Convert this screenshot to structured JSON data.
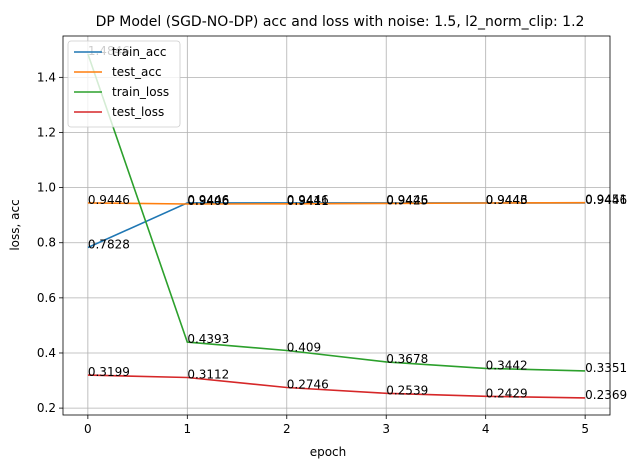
{
  "chart_data": {
    "type": "line",
    "title": "DP Model (SGD-NO-DP) acc and loss with noise: 1.5, l2_norm_clip: 1.2",
    "xlabel": "epoch",
    "ylabel": "loss, acc",
    "x": [
      0,
      1,
      2,
      3,
      4,
      5
    ],
    "xlim": [
      -0.25,
      5.25
    ],
    "ylim": [
      0.175,
      1.55
    ],
    "xticks": [
      "0",
      "1",
      "2",
      "3",
      "4",
      "5"
    ],
    "yticks": [
      "0.2",
      "0.4",
      "0.6",
      "0.8",
      "1.0",
      "1.2",
      "1.4"
    ],
    "grid": true,
    "legend_position": "upper-left",
    "series": [
      {
        "name": "train_acc",
        "color": "#1f77b4",
        "values": [
          0.7828,
          0.9446,
          0.9446,
          0.9446,
          0.9446,
          0.9446
        ],
        "labels": [
          "0.7828",
          "0.9446",
          "0.9446",
          "0.9446",
          "0.9446",
          "0.9446"
        ]
      },
      {
        "name": "test_acc",
        "color": "#ff7f0e",
        "values": [
          0.9446,
          0.9406,
          0.9411,
          0.9425,
          0.9443,
          0.9451
        ],
        "labels": [
          "0.9446",
          "0.9406",
          "0.9411",
          "0.9425",
          "0.9443",
          "0.9451"
        ]
      },
      {
        "name": "train_loss",
        "color": "#2ca02c",
        "values": [
          1.4846,
          0.4393,
          0.409,
          0.3678,
          0.3442,
          0.3351
        ],
        "labels": [
          "1.4846",
          "0.4393",
          "0.409",
          "0.3678",
          "0.3442",
          "0.3351"
        ]
      },
      {
        "name": "test_loss",
        "color": "#d62728",
        "values": [
          0.3199,
          0.3112,
          0.2746,
          0.2539,
          0.2429,
          0.2369
        ],
        "labels": [
          "0.3199",
          "0.3112",
          "0.2746",
          "0.2539",
          "0.2429",
          "0.2369"
        ]
      }
    ]
  }
}
